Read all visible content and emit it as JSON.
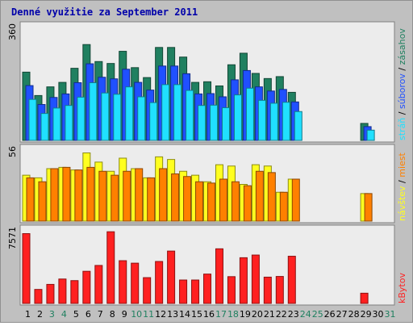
{
  "chart_data": {
    "type": "bar",
    "title": "Denné využitie za September 2011",
    "x": [
      "1",
      "2",
      "3",
      "4",
      "5",
      "6",
      "7",
      "8",
      "9",
      "10",
      "11",
      "12",
      "13",
      "14",
      "15",
      "16",
      "17",
      "18",
      "19",
      "20",
      "21",
      "22",
      "23",
      "24",
      "25",
      "26",
      "27",
      "28",
      "29",
      "30",
      "31"
    ],
    "weekend_days": [
      "3",
      "4",
      "10",
      "11",
      "17",
      "18",
      "24",
      "25",
      "31"
    ],
    "panels": [
      {
        "id": "traffic-a",
        "ymax_label": "360",
        "ylim": [
          0,
          360
        ],
        "legend": [
          {
            "name": "stráň",
            "color": "#20e0ff"
          },
          {
            "name": "súborov",
            "color": "#2050ff"
          },
          {
            "name": "zásahov",
            "color": "#208060"
          }
        ],
        "series": [
          {
            "name": "zásahov",
            "color": "#208060",
            "values": [
              213,
              140,
              167,
              181,
              225,
              299,
              246,
              240,
              278,
              227,
              196,
              290,
              290,
              260,
              181,
              183,
              170,
              236,
              272,
              209,
              193,
              199,
              150,
              0,
              0,
              0,
              0,
              0,
              53,
              0,
              0
            ]
          },
          {
            "name": "súborov",
            "color": "#2050ff",
            "values": [
              171,
              112,
              134,
              145,
              180,
              239,
              197,
              192,
              222,
              181,
              157,
              232,
              232,
              208,
              145,
              146,
              136,
              189,
              218,
              167,
              154,
              159,
              120,
              0,
              0,
              0,
              0,
              0,
              43,
              0,
              0
            ]
          },
          {
            "name": "stráň",
            "color": "#20e0ff",
            "values": [
              128,
              84,
              101,
              109,
              135,
              180,
              148,
              144,
              167,
              136,
              118,
              174,
              174,
              156,
              109,
              110,
              102,
              142,
              163,
              125,
              116,
              119,
              90,
              0,
              0,
              0,
              0,
              0,
              32,
              0,
              0
            ]
          }
        ]
      },
      {
        "id": "visits",
        "ymax_label": "56",
        "ylim": [
          0,
          56
        ],
        "legend": [
          {
            "name": "návštev",
            "color": "#ffff20"
          },
          {
            "name": "miest",
            "color": "#ff8000"
          }
        ],
        "series": [
          {
            "name": "návštev",
            "color": "#ffff20",
            "values": [
              35,
              33,
              40,
              41,
              39,
              52,
              45,
              38,
              48,
              40,
              33,
              49,
              47,
              38,
              35,
              30,
              43,
              42,
              28,
              43,
              42,
              22,
              32,
              0,
              0,
              0,
              0,
              0,
              21,
              0,
              0
            ]
          },
          {
            "name": "miest",
            "color": "#ff8000",
            "values": [
              33,
              30,
              40,
              41,
              39,
              41,
              38,
              35,
              38,
              40,
              33,
              40,
              36,
              34,
              30,
              29,
              32,
              30,
              27,
              38,
              37,
              22,
              32,
              0,
              0,
              0,
              0,
              0,
              21,
              0,
              0
            ]
          }
        ]
      },
      {
        "id": "kbytes",
        "ymax_label": "7571",
        "ylim": [
          0,
          7571
        ],
        "legend": [
          {
            "name": "kBytov",
            "color": "#ff2020"
          }
        ],
        "series": [
          {
            "name": "kBytov",
            "color": "#ff2020",
            "values": [
              7040,
              1410,
              1920,
              2460,
              2300,
              3240,
              3830,
              7230,
              4310,
              4060,
              2600,
              4230,
              5280,
              2360,
              2360,
              2960,
              5510,
              2700,
              4610,
              4880,
              2650,
              2720,
              4760,
              0,
              0,
              0,
              0,
              0,
              1030,
              0,
              0
            ]
          }
        ]
      }
    ]
  },
  "colors": {
    "frame": "#c0c0c0",
    "panel_bg": "#ececec",
    "title": "#0000aa",
    "weekday_label": "#000000",
    "weekend_label": "#208060"
  }
}
